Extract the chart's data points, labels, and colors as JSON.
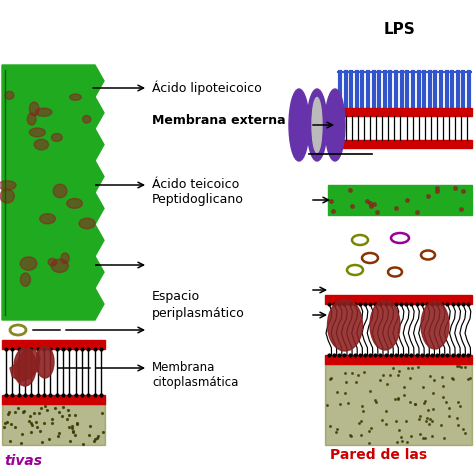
{
  "lps_label": "LPS",
  "label1": "Ácido lipoteicoico",
  "label2": "Membrana externa",
  "label3": "Ácido teicoico",
  "label4": "Peptidoglicano",
  "label5": "Espacio\nperiplasmático",
  "label6": "Membrana\ncitoplasmática",
  "footer_left": "tivas",
  "footer_right": "Pared de las",
  "bg_color": "#ffffff",
  "green_color": "#1faa1f",
  "red_color": "#cc0000",
  "purple_color": "#6633aa",
  "blue_color": "#3355cc",
  "dark_olive": "#7a8030",
  "dark_red_brown": "#8b2020",
  "footer_left_color": "#990099",
  "footer_right_color": "#cc0000",
  "label_fontsize": 9
}
